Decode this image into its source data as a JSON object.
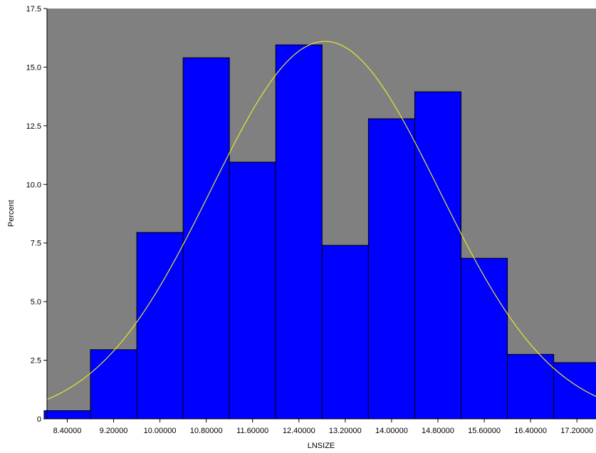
{
  "chart_data": {
    "type": "bar",
    "subtype": "histogram",
    "xlabel": "LNSIZE",
    "ylabel": "Percent",
    "x_tick_labels": [
      "8.40000",
      "9.20000",
      "10.00000",
      "10.80000",
      "11.60000",
      "12.40000",
      "13.20000",
      "14.00000",
      "14.80000",
      "15.60000",
      "16.40000",
      "17.20000"
    ],
    "y_ticks": [
      0,
      2.5,
      5.0,
      7.5,
      10.0,
      12.5,
      15.0,
      17.5
    ],
    "y_tick_labels": [
      "0",
      "2.5",
      "5.0",
      "7.5",
      "10.0",
      "12.5",
      "15.0",
      "17.5"
    ],
    "ylim": [
      0,
      17.5
    ],
    "xlim": [
      8.05,
      17.53
    ],
    "bin_width": 0.8,
    "bin_centers": [
      8.4,
      9.2,
      10.0,
      10.8,
      11.6,
      12.4,
      13.2,
      14.0,
      14.8,
      15.6,
      16.4,
      17.2
    ],
    "values": [
      0.35,
      2.95,
      7.95,
      15.4,
      10.95,
      15.95,
      7.4,
      12.8,
      13.95,
      6.85,
      2.75,
      2.4
    ],
    "fit_curve": {
      "type": "normal",
      "mean": 12.85,
      "sd": 1.97,
      "peak_percent": 16.1
    },
    "grid": false,
    "colors": {
      "plot_background": "#808080",
      "bars": "#0000ff",
      "bar_edge": "#000000",
      "curve": "#e6e632"
    }
  }
}
